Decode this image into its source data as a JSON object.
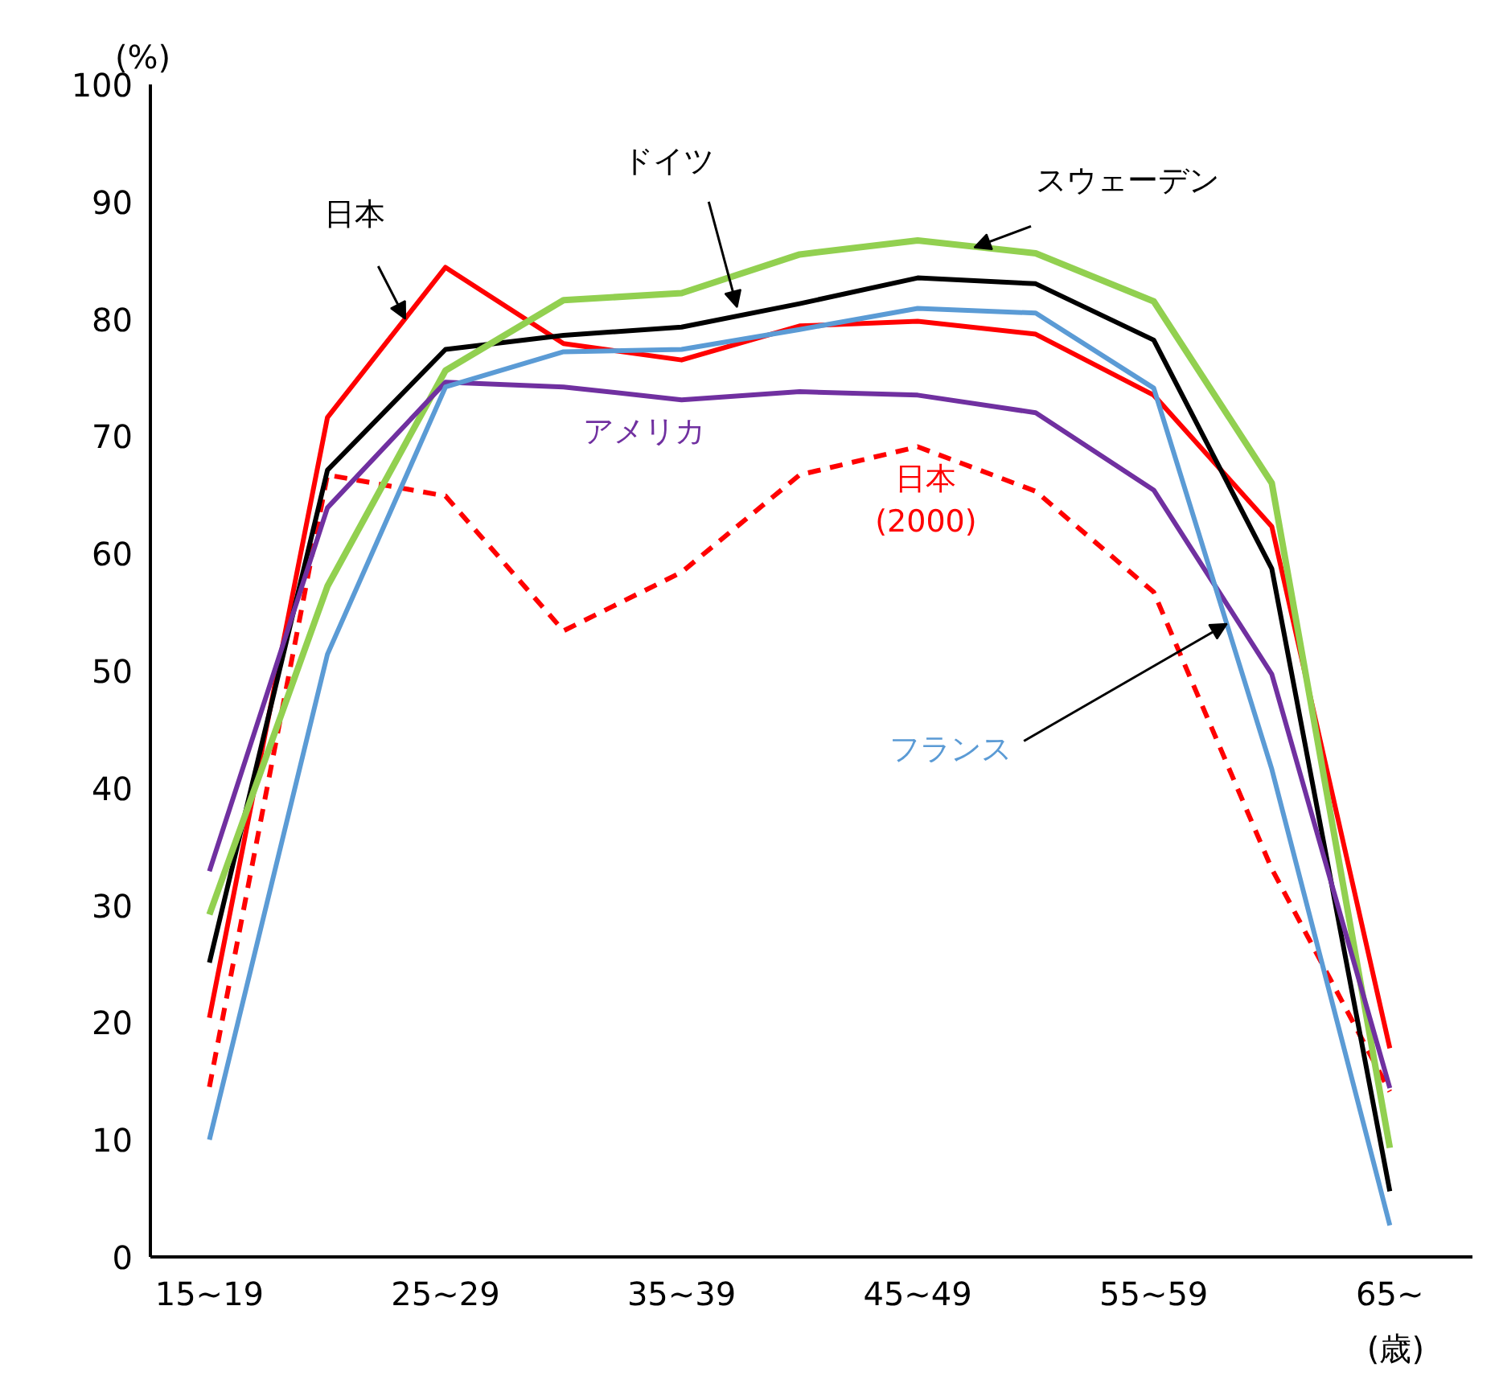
{
  "chart_data": {
    "type": "line",
    "ylabel": "(%)",
    "xlabel": "(歳)",
    "categories": [
      "15~19",
      null,
      "25~29",
      null,
      "35~39",
      null,
      "45~49",
      null,
      "55~59",
      null,
      "65~"
    ],
    "ylim": [
      0,
      100
    ],
    "yticks": [
      0,
      10,
      20,
      30,
      40,
      50,
      60,
      70,
      80,
      90,
      100
    ],
    "grid": false,
    "marker": "none",
    "series": [
      {
        "name": "日本",
        "color": "#ff0000",
        "values": [
          20.4,
          71.6,
          84.4,
          77.9,
          76.5,
          79.4,
          79.8,
          78.7,
          73.5,
          62.3,
          17.8
        ]
      },
      {
        "name": "日本\n(2000)",
        "color": "#ff0000",
        "line_style": "dashed",
        "values": [
          14.5,
          66.7,
          64.9,
          53.4,
          58.4,
          66.7,
          69.1,
          65.3,
          56.7,
          33.1,
          14.1
        ]
      },
      {
        "name": "ドイツ",
        "color": "#000000",
        "values": [
          25.1,
          67.1,
          77.4,
          78.6,
          79.3,
          81.3,
          83.5,
          83.0,
          78.2,
          58.7,
          5.6
        ]
      },
      {
        "name": "スウェーデン",
        "color": "#92d050",
        "values": [
          29.2,
          57.2,
          75.6,
          81.6,
          82.2,
          85.5,
          86.7,
          85.6,
          81.5,
          66.0,
          9.3
        ]
      },
      {
        "name": "アメリカ",
        "color": "#7030a0",
        "values": [
          32.9,
          63.9,
          74.6,
          74.2,
          73.1,
          73.8,
          73.5,
          72.0,
          65.4,
          49.7,
          14.4
        ]
      },
      {
        "name": "フランス",
        "color": "#5b9bd5",
        "values": [
          10.0,
          51.4,
          74.2,
          77.2,
          77.4,
          79.1,
          80.9,
          80.5,
          74.1,
          41.6,
          2.7
        ]
      }
    ]
  }
}
